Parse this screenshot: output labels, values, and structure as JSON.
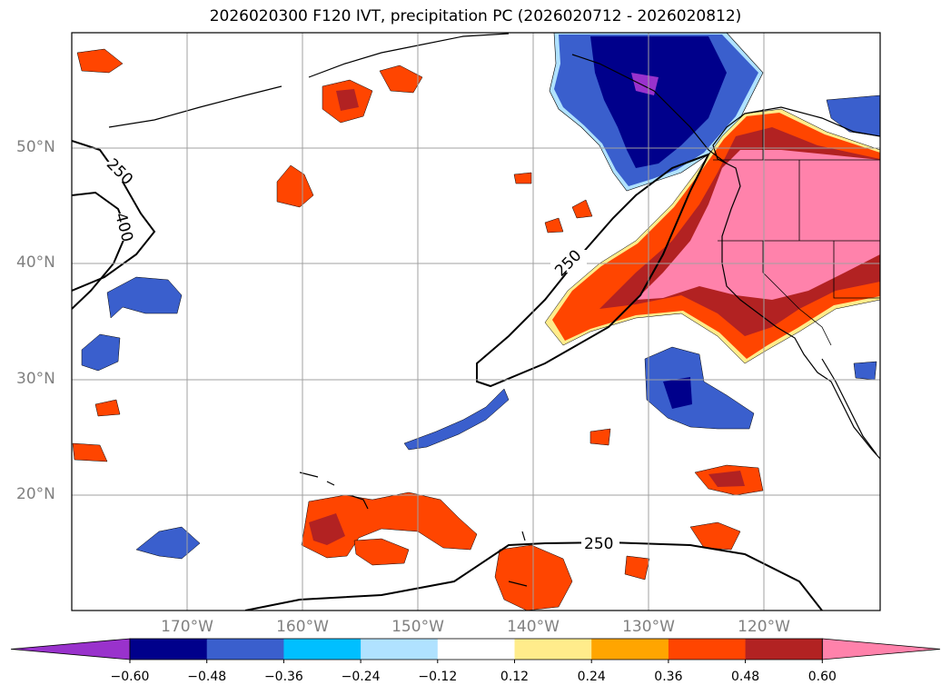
{
  "title": "2026020300 F120 IVT, precipitation PC (2026020712 - 2026020812)",
  "map": {
    "lat_labels": [
      {
        "text": "50°N",
        "lat": 50
      },
      {
        "text": "40°N",
        "lat": 40
      },
      {
        "text": "30°N",
        "lat": 30
      },
      {
        "text": "20°N",
        "lat": 20
      }
    ],
    "lon_labels": [
      {
        "text": "170°W",
        "lon": -170
      },
      {
        "text": "160°W",
        "lon": -160
      },
      {
        "text": "150°W",
        "lon": -150
      },
      {
        "text": "140°W",
        "lon": -140
      },
      {
        "text": "130°W",
        "lon": -130
      },
      {
        "text": "120°W",
        "lon": -120
      }
    ],
    "ivt_contour_labels": [
      "250",
      "400",
      "250",
      "250"
    ]
  },
  "colorbar": {
    "tick_labels": [
      "−0.60",
      "−0.48",
      "−0.36",
      "−0.24",
      "−0.12",
      "0.12",
      "0.24",
      "0.36",
      "0.48",
      "0.60"
    ],
    "colors": [
      "#9932cc",
      "#00008b",
      "#3a5fcd",
      "#00bfff",
      "#b0e2ff",
      "#ffffff",
      "#ffec8b",
      "#ffa500",
      "#ff4500",
      "#b22222",
      "#ff82ab"
    ]
  }
}
